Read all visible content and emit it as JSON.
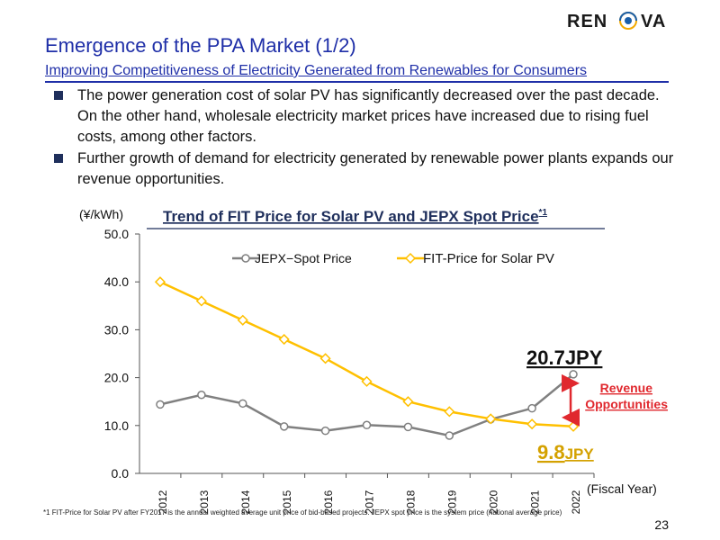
{
  "header": {
    "logo_text": "RENOVA",
    "title": "Emergence of the PPA Market (1/2)",
    "subtitle": "Improving Competitiveness of Electricity Generated from Renewables for Consumers"
  },
  "bullets": [
    "The power generation cost of solar PV has significantly decreased over the past decade. On the other hand, wholesale electricity market prices have increased due to rising fuel costs, among other factors.",
    "Further growth of demand for electricity generated by renewable power plants expands our revenue opportunities."
  ],
  "chart_data": {
    "type": "line",
    "title": "Trend of FIT Price for Solar PV and JEPX Spot Price",
    "title_superscript": "*1",
    "ylabel": "(¥/kWh)",
    "xlabel": "(Fiscal Year)",
    "ylim": [
      0,
      50
    ],
    "yticks": [
      "0.0",
      "10.0",
      "20.0",
      "30.0",
      "40.0",
      "50.0"
    ],
    "categories": [
      "2012",
      "2013",
      "2014",
      "2015",
      "2016",
      "2017",
      "2018",
      "2019",
      "2020",
      "2021",
      "2022"
    ],
    "series": [
      {
        "name": "JEPX−Spot Price",
        "color": "#808080",
        "values": [
          14.4,
          16.4,
          14.6,
          9.8,
          8.9,
          10.1,
          9.7,
          7.9,
          11.3,
          13.6,
          20.7
        ]
      },
      {
        "name": "FIT-Price for Solar PV",
        "color": "#ffc000",
        "values": [
          40.0,
          36.0,
          32.0,
          28.0,
          24.0,
          19.2,
          15.0,
          12.9,
          11.4,
          10.3,
          9.8
        ]
      }
    ],
    "annotations": {
      "jepx_label": "20.7JPY",
      "fit_label_number": "9.8",
      "fit_label_unit": "JPY",
      "gap_label_line1": "Revenue",
      "gap_label_line2": "Opportunities",
      "gap_color": "#e0282e"
    }
  },
  "footnote": "*1 FIT-Price for Solar PV after FY2017 is the annual weighted average unit price of bid-based projects. JEPX spot price is the system price (national average price)",
  "page_number": "23"
}
